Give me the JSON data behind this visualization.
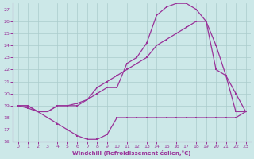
{
  "xlabel": "Windchill (Refroidissement éolien,°C)",
  "bg_color": "#cce8e8",
  "grid_color": "#aacccc",
  "line_color": "#993399",
  "xlim": [
    -0.5,
    23.5
  ],
  "ylim": [
    16,
    27.5
  ],
  "yticks": [
    16,
    17,
    18,
    19,
    20,
    21,
    22,
    23,
    24,
    25,
    26,
    27
  ],
  "xticks": [
    0,
    1,
    2,
    3,
    4,
    5,
    6,
    7,
    8,
    9,
    10,
    11,
    12,
    13,
    14,
    15,
    16,
    17,
    18,
    19,
    20,
    21,
    22,
    23
  ],
  "series1_x": [
    0,
    1,
    2,
    3,
    4,
    5,
    6,
    7,
    8,
    9,
    10,
    11,
    12,
    13,
    14,
    15,
    16,
    17,
    18,
    19,
    20,
    21,
    22,
    23
  ],
  "series1_y": [
    19.0,
    18.8,
    18.5,
    18.0,
    17.5,
    17.0,
    16.5,
    16.2,
    16.2,
    16.6,
    18.0,
    18.0,
    18.0,
    18.0,
    18.0,
    18.0,
    18.0,
    18.0,
    18.0,
    18.0,
    18.0,
    18.0,
    18.0,
    18.5
  ],
  "series2_x": [
    0,
    1,
    2,
    3,
    4,
    5,
    6,
    7,
    8,
    9,
    10,
    11,
    12,
    13,
    14,
    15,
    16,
    17,
    18,
    19,
    20,
    21,
    22,
    23
  ],
  "series2_y": [
    19.0,
    19.0,
    18.5,
    18.5,
    19.0,
    19.0,
    19.0,
    19.5,
    20.0,
    20.5,
    20.5,
    22.5,
    23.0,
    24.2,
    26.5,
    27.2,
    27.5,
    27.5,
    27.0,
    26.0,
    22.0,
    21.5,
    18.5,
    18.5
  ],
  "series3_x": [
    0,
    1,
    2,
    3,
    4,
    5,
    6,
    7,
    8,
    9,
    10,
    11,
    12,
    13,
    14,
    15,
    16,
    17,
    18,
    19,
    20,
    21,
    22,
    23
  ],
  "series3_y": [
    19.0,
    19.0,
    18.5,
    18.5,
    19.0,
    19.0,
    19.2,
    19.5,
    20.5,
    21.0,
    21.5,
    22.0,
    22.5,
    23.0,
    24.0,
    24.5,
    25.0,
    25.5,
    26.0,
    26.0,
    24.0,
    21.5,
    20.0,
    18.5
  ]
}
